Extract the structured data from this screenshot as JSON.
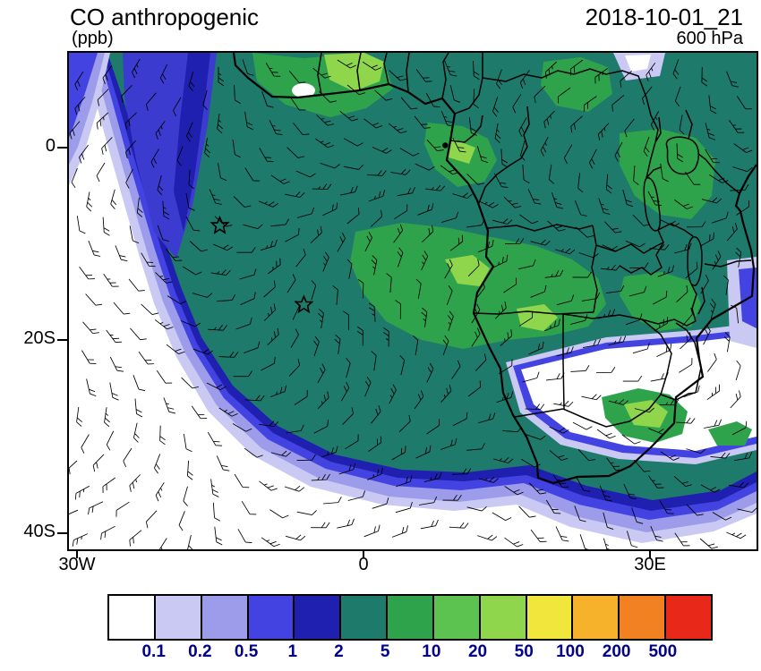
{
  "header": {
    "title": "CO anthropogenic",
    "units_label": "(ppb)",
    "valid_time": "2018-10-01_21",
    "level": "600 hPa"
  },
  "axes": {
    "y_ticks": [
      "0",
      "20S",
      "40S"
    ],
    "x_ticks": [
      "30W",
      "0",
      "30E"
    ]
  },
  "chart_data": {
    "type": "heatmap",
    "title": "CO anthropogenic",
    "units": "ppb",
    "valid_time": "2018-10-01_21",
    "pressure_level": "600 hPa",
    "region": {
      "lon_min_deg": -31,
      "lon_max_deg": 41,
      "lat_min_deg": -41.5,
      "lat_max_deg": 10
    },
    "x_tick_lons": [
      -30,
      0,
      30
    ],
    "y_tick_lats": [
      0,
      -20,
      -40
    ],
    "overlays": [
      "wind barbs",
      "coastlines",
      "country borders",
      "lakes",
      "star markers"
    ],
    "markers": [
      {
        "shape": "star",
        "lon": -15.2,
        "lat": -7.9
      },
      {
        "shape": "star",
        "lon": -6.4,
        "lat": -16.1
      },
      {
        "shape": "dot",
        "lon": 8.4,
        "lat": 0.4
      }
    ],
    "colorbar": {
      "orientation": "horizontal",
      "levels": [
        "0.1",
        "0.2",
        "0.5",
        "1",
        "2",
        "5",
        "10",
        "20",
        "50",
        "100",
        "200",
        "500"
      ],
      "colors": [
        "#ffffff",
        "#c9c9f3",
        "#9c9cea",
        "#4343e2",
        "#2020b0",
        "#1e7a6b",
        "#2fa34c",
        "#5cc351",
        "#8fd64d",
        "#f1e73c",
        "#f5b22a",
        "#f18121",
        "#e82818"
      ]
    },
    "field_summary": "2-5 ppb (dark teal) over most of tropical Africa and the Gulf of Guinea outflow; 5-20 ppb (greens) over source regions; values fall through 1-2 ppb (blues) and 0.1-0.5 ppb (purples) to below 0.1 ppb (white) over the remote South Atlantic and the southern Africa interior."
  }
}
